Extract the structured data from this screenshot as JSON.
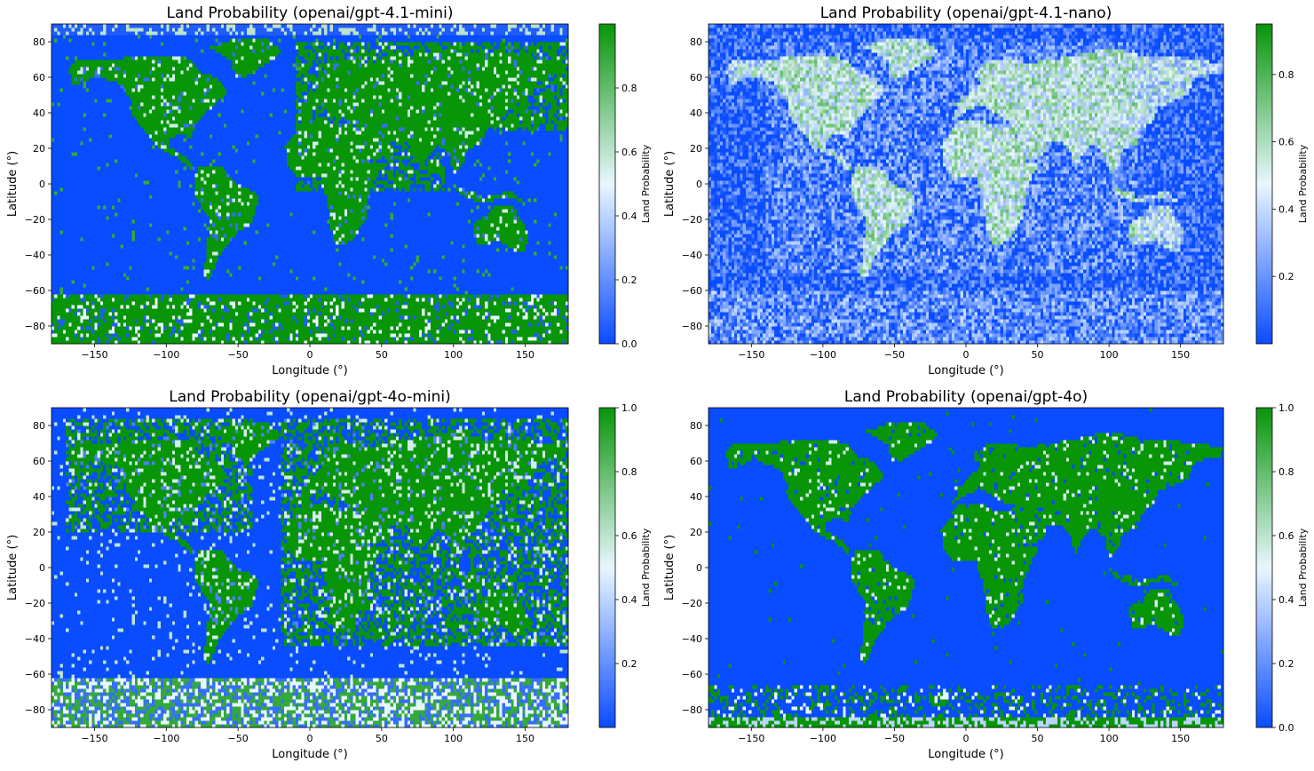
{
  "chart_data": [
    {
      "type": "heatmap",
      "title": "Land Probability (openai/gpt-4.1-mini)",
      "xlabel": "Longitude (°)",
      "ylabel": "Latitude (°)",
      "xlim": [
        -180,
        180
      ],
      "ylim": [
        -90,
        90
      ],
      "xticks": [
        -150,
        -100,
        -50,
        0,
        50,
        100,
        150
      ],
      "yticks": [
        -80,
        -60,
        -40,
        -20,
        0,
        20,
        40,
        60,
        80
      ],
      "colorbar": {
        "label": "Land Probability",
        "range": [
          0.0,
          1.0
        ],
        "ticks": [
          "0.0",
          "0.2",
          "0.4",
          "0.6",
          "0.8"
        ]
      },
      "colormap": [
        "#0a4cff",
        "#e8f7ff",
        "#089508"
      ],
      "style": "mini41"
    },
    {
      "type": "heatmap",
      "title": "Land Probability (openai/gpt-4.1-nano)",
      "xlabel": "Longitude (°)",
      "ylabel": "Latitude (°)",
      "xlim": [
        -180,
        180
      ],
      "ylim": [
        -90,
        90
      ],
      "xticks": [
        -150,
        -100,
        -50,
        0,
        50,
        100,
        150
      ],
      "yticks": [
        -80,
        -60,
        -40,
        -20,
        0,
        20,
        40,
        60,
        80
      ],
      "colorbar": {
        "label": "Land Probability",
        "range": [
          0.0,
          0.95
        ],
        "ticks": [
          "0.2",
          "0.4",
          "0.6",
          "0.8"
        ]
      },
      "colormap": [
        "#0a4cff",
        "#e8f7ff",
        "#089508"
      ],
      "style": "nano41"
    },
    {
      "type": "heatmap",
      "title": "Land Probability (openai/gpt-4o-mini)",
      "xlabel": "Longitude (°)",
      "ylabel": "Latitude (°)",
      "xlim": [
        -180,
        180
      ],
      "ylim": [
        -90,
        90
      ],
      "xticks": [
        -150,
        -100,
        -50,
        0,
        50,
        100,
        150
      ],
      "yticks": [
        -80,
        -60,
        -40,
        -20,
        0,
        20,
        40,
        60,
        80
      ],
      "colorbar": {
        "label": "Land Probability",
        "range": [
          0.0,
          1.0
        ],
        "ticks": [
          "0.2",
          "0.4",
          "0.6",
          "0.8",
          "1.0"
        ]
      },
      "colormap": [
        "#0a4cff",
        "#e8f7ff",
        "#089508"
      ],
      "style": "mini4o"
    },
    {
      "type": "heatmap",
      "title": "Land Probability (openai/gpt-4o)",
      "xlabel": "Longitude (°)",
      "ylabel": "Latitude (°)",
      "xlim": [
        -180,
        180
      ],
      "ylim": [
        -90,
        90
      ],
      "xticks": [
        -150,
        -100,
        -50,
        0,
        50,
        100,
        150
      ],
      "yticks": [
        -80,
        -60,
        -40,
        -20,
        0,
        20,
        40,
        60,
        80
      ],
      "colorbar": {
        "label": "Land Probability",
        "range": [
          0.0,
          1.0
        ],
        "ticks": [
          "0.0",
          "0.2",
          "0.4",
          "0.6",
          "0.8",
          "1.0"
        ]
      },
      "colormap": [
        "#0a4cff",
        "#e8f7ff",
        "#089508"
      ],
      "style": "full4o"
    }
  ]
}
